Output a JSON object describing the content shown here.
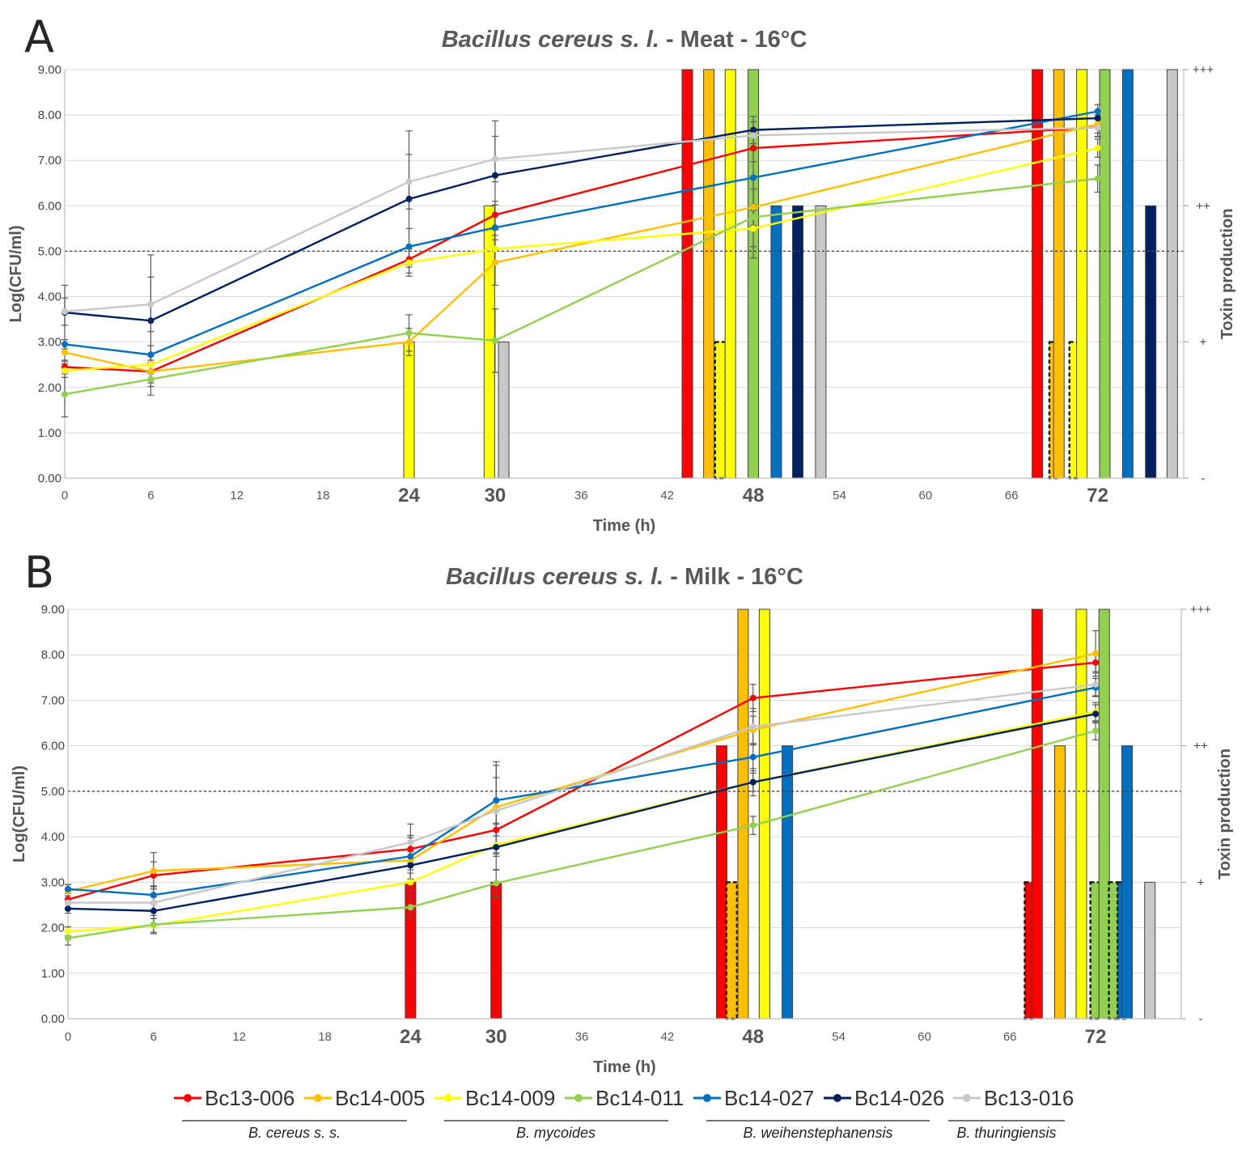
{
  "chart_data": [
    {
      "panel": "A",
      "type": "line",
      "title_italic": "Bacillus cereus s. l.",
      "title_rest": " - Meat - 16°C",
      "xlabel": "Time (h)",
      "ylabel": "Log(CFU/ml)",
      "y2label": "Toxin production",
      "ylim": [
        0,
        9
      ],
      "xlim": [
        0,
        78
      ],
      "yticks": [
        "0.00",
        "1.00",
        "2.00",
        "3.00",
        "4.00",
        "5.00",
        "6.00",
        "7.00",
        "8.00",
        "9.00"
      ],
      "xticks": [
        {
          "value": 0,
          "label": "0",
          "big": false
        },
        {
          "value": 6,
          "label": "6",
          "big": false
        },
        {
          "value": 12,
          "label": "12",
          "big": false
        },
        {
          "value": 18,
          "label": "18",
          "big": false
        },
        {
          "value": 24,
          "label": "24",
          "big": true
        },
        {
          "value": 30,
          "label": "30",
          "big": true
        },
        {
          "value": 36,
          "label": "36",
          "big": false
        },
        {
          "value": 42,
          "label": "42",
          "big": false
        },
        {
          "value": 48,
          "label": "48",
          "big": true
        },
        {
          "value": 54,
          "label": "54",
          "big": false
        },
        {
          "value": 60,
          "label": "60",
          "big": false
        },
        {
          "value": 66,
          "label": "66",
          "big": false
        },
        {
          "value": 72,
          "label": "72",
          "big": true
        }
      ],
      "y2ticks": [
        {
          "value": 0,
          "label": "-"
        },
        {
          "value": 3,
          "label": "+"
        },
        {
          "value": 6,
          "label": "++"
        },
        {
          "value": 9,
          "label": "+++"
        }
      ],
      "threshold": 5,
      "series": [
        {
          "name": "Bc13-006",
          "x": [
            0,
            6,
            24,
            30,
            48,
            72
          ],
          "values": [
            2.45,
            2.35,
            4.82,
            5.8,
            7.27,
            7.73
          ],
          "err": [
            0.15,
            0.2,
            0.3,
            0.3,
            0.3,
            0.2
          ]
        },
        {
          "name": "Bc14-005",
          "x": [
            0,
            6,
            24,
            30,
            48,
            72
          ],
          "values": [
            2.77,
            2.35,
            3.0,
            4.75,
            5.97,
            7.8
          ],
          "err": [
            0.2,
            0.25,
            0.3,
            0.5,
            0.4,
            0.2
          ]
        },
        {
          "name": "Bc14-009",
          "x": [
            0,
            6,
            24,
            30,
            48,
            72
          ],
          "values": [
            2.37,
            2.5,
            4.75,
            5.05,
            5.5,
            7.27
          ],
          "err": [
            0.15,
            0.2,
            0.3,
            0.3,
            0.4,
            0.2
          ]
        },
        {
          "name": "Bc14-011",
          "x": [
            0,
            6,
            24,
            30,
            48,
            72
          ],
          "values": [
            1.85,
            2.18,
            3.2,
            3.03,
            5.75,
            6.6
          ],
          "err": [
            0.5,
            0.35,
            0.4,
            0.7,
            0.9,
            0.3
          ]
        },
        {
          "name": "Bc14-027",
          "x": [
            0,
            6,
            24,
            30,
            48,
            72
          ],
          "values": [
            2.95,
            2.72,
            5.1,
            5.52,
            6.62,
            8.08
          ],
          "err": [
            0.1,
            0.2,
            0.4,
            0.5,
            0.6,
            0.15
          ]
        },
        {
          "name": "Bc14-026",
          "x": [
            0,
            6,
            24,
            30,
            48,
            72
          ],
          "values": [
            3.65,
            3.47,
            6.15,
            6.67,
            7.67,
            7.93
          ],
          "err": [
            0.6,
            1.45,
            1.5,
            1.2,
            0.3,
            0.15
          ]
        },
        {
          "name": "Bc13-016",
          "x": [
            0,
            6,
            24,
            30,
            48,
            72
          ],
          "values": [
            3.67,
            3.83,
            6.53,
            7.03,
            7.55,
            7.72
          ],
          "err": [
            0.3,
            0.6,
            0.6,
            0.5,
            0.3,
            0.2
          ]
        }
      ],
      "toxin_bars": [
        {
          "series": "Bc14-009",
          "x": 24,
          "value": 3,
          "dashed": false
        },
        {
          "series": "Bc14-009",
          "x": 29.6,
          "value": 6,
          "dashed": false
        },
        {
          "series": "Bc13-016",
          "x": 30.6,
          "value": 3,
          "dashed": false
        },
        {
          "series": "Bc13-006",
          "x": 43.4,
          "value": 9,
          "dashed": false
        },
        {
          "series": "Bc14-005",
          "x": 44.9,
          "value": 9,
          "dashed": false
        },
        {
          "series": "Bc14-009",
          "x": 45.7,
          "value": 3,
          "dashed": true
        },
        {
          "series": "Bc14-009",
          "x": 46.4,
          "value": 9,
          "dashed": false
        },
        {
          "series": "Bc14-011",
          "x": 48.0,
          "value": 9,
          "dashed": false
        },
        {
          "series": "Bc14-027",
          "x": 49.6,
          "value": 6,
          "dashed": false
        },
        {
          "series": "Bc14-026",
          "x": 51.1,
          "value": 6,
          "dashed": false
        },
        {
          "series": "Bc13-016",
          "x": 52.7,
          "value": 6,
          "dashed": false
        },
        {
          "series": "Bc13-006",
          "x": 67.8,
          "value": 9,
          "dashed": false
        },
        {
          "series": "Bc14-005",
          "x": 69.0,
          "value": 3,
          "dashed": true
        },
        {
          "series": "Bc14-005",
          "x": 69.3,
          "value": 9,
          "dashed": false
        },
        {
          "series": "Bc14-009",
          "x": 70.4,
          "value": 3,
          "dashed": true
        },
        {
          "series": "Bc14-009",
          "x": 70.9,
          "value": 9,
          "dashed": false
        },
        {
          "series": "Bc14-011",
          "x": 72.5,
          "value": 9,
          "dashed": false
        },
        {
          "series": "Bc14-027",
          "x": 74.1,
          "value": 9,
          "dashed": false
        },
        {
          "series": "Bc14-026",
          "x": 75.7,
          "value": 6,
          "dashed": false
        },
        {
          "series": "Bc13-016",
          "x": 77.2,
          "value": 9,
          "dashed": false
        }
      ]
    },
    {
      "panel": "B",
      "type": "line",
      "title_italic": "Bacillus cereus s. l.",
      "title_rest": " - Milk - 16°C",
      "xlabel": "Time (h)",
      "ylabel": "Log(CFU/ml)",
      "y2label": "Toxin production",
      "ylim": [
        0,
        9
      ],
      "xlim": [
        0,
        78
      ],
      "yticks": [
        "0.00",
        "1.00",
        "2.00",
        "3.00",
        "4.00",
        "5.00",
        "6.00",
        "7.00",
        "8.00",
        "9.00"
      ],
      "xticks": [
        {
          "value": 0,
          "label": "0",
          "big": false
        },
        {
          "value": 6,
          "label": "6",
          "big": false
        },
        {
          "value": 12,
          "label": "12",
          "big": false
        },
        {
          "value": 18,
          "label": "18",
          "big": false
        },
        {
          "value": 24,
          "label": "24",
          "big": true
        },
        {
          "value": 30,
          "label": "30",
          "big": true
        },
        {
          "value": 36,
          "label": "36",
          "big": false
        },
        {
          "value": 42,
          "label": "42",
          "big": false
        },
        {
          "value": 48,
          "label": "48",
          "big": true
        },
        {
          "value": 54,
          "label": "54",
          "big": false
        },
        {
          "value": 60,
          "label": "60",
          "big": false
        },
        {
          "value": 66,
          "label": "66",
          "big": false
        },
        {
          "value": 72,
          "label": "72",
          "big": true
        }
      ],
      "y2ticks": [
        {
          "value": 0,
          "label": "-"
        },
        {
          "value": 3,
          "label": "+"
        },
        {
          "value": 6,
          "label": "++"
        },
        {
          "value": 9,
          "label": "+++"
        }
      ],
      "threshold": 5,
      "series": [
        {
          "name": "Bc13-006",
          "x": [
            0,
            6,
            24,
            30,
            48,
            72
          ],
          "values": [
            2.62,
            3.15,
            3.73,
            4.15,
            7.05,
            7.83
          ],
          "err": [
            0.2,
            0.3,
            0.3,
            0.4,
            0.3,
            0.2
          ]
        },
        {
          "name": "Bc14-005",
          "x": [
            0,
            6,
            24,
            30,
            48,
            72
          ],
          "values": [
            2.8,
            3.25,
            3.48,
            4.65,
            6.35,
            8.03
          ],
          "err": [
            0.15,
            0.4,
            0.5,
            1.0,
            0.3,
            0.5
          ]
        },
        {
          "name": "Bc14-009",
          "x": [
            0,
            6,
            24,
            30,
            48,
            72
          ],
          "values": [
            1.92,
            2.05,
            3.0,
            3.82,
            5.2,
            6.75
          ],
          "err": [
            0.1,
            0.15,
            0.2,
            0.2,
            0.2,
            0.2
          ]
        },
        {
          "name": "Bc14-011",
          "x": [
            0,
            6,
            24,
            30,
            48,
            72
          ],
          "values": [
            1.77,
            2.07,
            2.45,
            2.98,
            4.25,
            6.33
          ],
          "err": [
            0.15,
            0.2,
            0.25,
            0.3,
            0.2,
            0.2
          ]
        },
        {
          "name": "Bc14-027",
          "x": [
            0,
            6,
            24,
            30,
            48,
            72
          ],
          "values": [
            2.85,
            2.72,
            3.57,
            4.8,
            5.75,
            7.28
          ],
          "err": [
            0.1,
            0.2,
            0.3,
            0.5,
            0.3,
            0.2
          ]
        },
        {
          "name": "Bc14-026",
          "x": [
            0,
            6,
            24,
            30,
            48,
            72
          ],
          "values": [
            2.42,
            2.37,
            3.37,
            3.77,
            5.2,
            6.7
          ],
          "err": [
            0.1,
            0.3,
            0.3,
            0.5,
            0.3,
            0.2
          ]
        },
        {
          "name": "Bc13-016",
          "x": [
            0,
            6,
            24,
            30,
            48,
            72
          ],
          "values": [
            2.55,
            2.55,
            3.88,
            4.57,
            6.42,
            7.35
          ],
          "err": [
            0.15,
            0.35,
            0.4,
            1.0,
            0.4,
            0.25
          ]
        }
      ],
      "toxin_bars": [
        {
          "series": "Bc13-006",
          "x": 24,
          "value": 3,
          "dashed": false
        },
        {
          "series": "Bc13-006",
          "x": 30,
          "value": 3,
          "dashed": false
        },
        {
          "series": "Bc13-006",
          "x": 45.8,
          "value": 6,
          "dashed": false
        },
        {
          "series": "Bc14-005",
          "x": 46.5,
          "value": 3,
          "dashed": true
        },
        {
          "series": "Bc14-005",
          "x": 47.3,
          "value": 9,
          "dashed": false
        },
        {
          "series": "Bc14-009",
          "x": 48.8,
          "value": 9,
          "dashed": false
        },
        {
          "series": "Bc14-027",
          "x": 50.4,
          "value": 6,
          "dashed": false
        },
        {
          "series": "Bc13-006",
          "x": 67.4,
          "value": 3,
          "dashed": true
        },
        {
          "series": "Bc13-006",
          "x": 67.9,
          "value": 9,
          "dashed": false
        },
        {
          "series": "Bc14-005",
          "x": 69.5,
          "value": 6,
          "dashed": false
        },
        {
          "series": "Bc14-009",
          "x": 71.0,
          "value": 9,
          "dashed": false
        },
        {
          "series": "Bc14-011",
          "x": 72.0,
          "value": 3,
          "dashed": true
        },
        {
          "series": "Bc14-011",
          "x": 72.6,
          "value": 9,
          "dashed": false
        },
        {
          "series": "Bc14-011",
          "x": 73.3,
          "value": 3,
          "dashed": true
        },
        {
          "series": "Bc14-027",
          "x": 73.9,
          "value": 3,
          "dashed": true
        },
        {
          "series": "Bc14-027",
          "x": 74.2,
          "value": 6,
          "dashed": false
        },
        {
          "series": "Bc13-016",
          "x": 75.8,
          "value": 3,
          "dashed": false
        }
      ]
    }
  ],
  "colors": {
    "Bc13-006": "#ff0000",
    "Bc14-005": "#ffc000",
    "Bc14-009": "#ffff00",
    "Bc14-011": "#92d050",
    "Bc14-027": "#0070c0",
    "Bc14-026": "#002060",
    "Bc13-016": "#c8c8c8"
  },
  "legend": {
    "entries": [
      "Bc13-006",
      "Bc14-005",
      "Bc14-009",
      "Bc14-011",
      "Bc14-027",
      "Bc14-026",
      "Bc13-016"
    ],
    "groups": [
      "B. cereus s. s.",
      "B. mycoides",
      "B. weihenstephanensis",
      "B. thuringiensis"
    ]
  }
}
